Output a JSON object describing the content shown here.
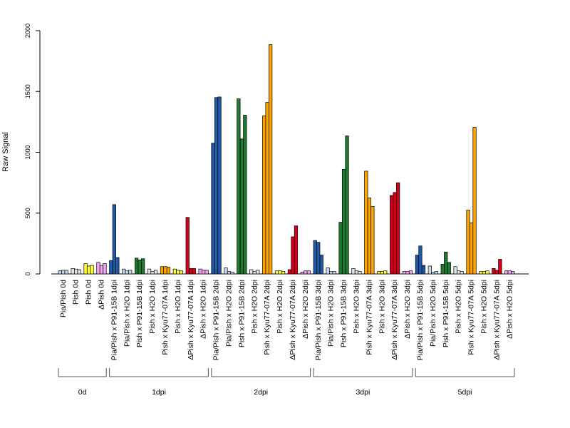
{
  "chart_data": {
    "type": "bar",
    "ylabel": "Raw Signal",
    "ylim": [
      0,
      2000
    ],
    "yticks": [
      0,
      500,
      1000,
      1500,
      2000
    ],
    "grid": false,
    "categories": [
      "Pia/Pish 0d",
      "Pish 0d",
      "Pish 0d",
      "ΔPish 0d",
      "Pia/Pish x P91-15B 1dpi",
      "Pia/Pish x H2O 1dpi",
      "Pish x P91-15B 1dpi",
      "Pish x H2O 1dpi",
      "Pish x Kyu77-07A 1dpi",
      "Pish x H2O 1dpi",
      "ΔPish x Kyu77-07A 1dpi",
      "ΔPish x H2O 1dpi",
      "Pia/Pish x P91-15B 2dpi",
      "Pia/Pish x H2O 2dpi",
      "Pish x P91-15B 2dpi",
      "Pish x H2O 2dpi",
      "Pish x Kyu77-07A 2dpi",
      "Pish x H2O 2dpi",
      "ΔPish x Kyu77-07A 2dpi",
      "ΔPish x H2O 2dpi",
      "Pia/Pish x P91-15B 3dpi",
      "Pia/Pish x H2O 3dpi",
      "Pish x P91-15B 3dpi",
      "Pish x H2O 3dpi",
      "Pish x Kyu77-07A 3dpi",
      "Pish x H2O 3dpi",
      "ΔPish x Kyu77-07A 3dpi",
      "ΔPish x H2O 3dpi",
      "Pia/Pish x P91-15B 5dpi",
      "Pia/Pish x H2O 5dpi",
      "Pish x P91-15B 5dpi",
      "Pish x H2O 5dpi",
      "Pish x Kyu77-07A 5dpi",
      "Pish x H2O 5dpi",
      "ΔPish x Kyu77-07A 5dpi",
      "ΔPish x H2O 5dpi"
    ],
    "colors": [
      "#c6dbef",
      "#e5e5e5",
      "#ffff33",
      "#f4a6f0",
      "#1f5aa6",
      "#c6dbef",
      "#1e7a2e",
      "#e5e5e5",
      "#ffa500",
      "#ffff33",
      "#d7001a",
      "#f4a6f0",
      "#1f5aa6",
      "#c6dbef",
      "#1e7a2e",
      "#e5e5e5",
      "#ffa500",
      "#ffff33",
      "#d7001a",
      "#f4a6f0",
      "#1f5aa6",
      "#c6dbef",
      "#1e7a2e",
      "#e5e5e5",
      "#ffa500",
      "#ffff33",
      "#d7001a",
      "#f4a6f0",
      "#1f5aa6",
      "#c6dbef",
      "#1e7a2e",
      "#e5e5e5",
      "#ffa500",
      "#ffff33",
      "#d7001a",
      "#f4a6f0"
    ],
    "replicate_values": [
      [
        25,
        30,
        30
      ],
      [
        45,
        40,
        35
      ],
      [
        85,
        65,
        70
      ],
      [
        95,
        70,
        85
      ],
      [
        110,
        570,
        135
      ],
      [
        40,
        25,
        30
      ],
      [
        130,
        115,
        125
      ],
      [
        40,
        20,
        30
      ],
      [
        60,
        60,
        55
      ],
      [
        40,
        30,
        25
      ],
      [
        465,
        45,
        45
      ],
      [
        40,
        30,
        30
      ],
      [
        1075,
        1450,
        1455
      ],
      [
        50,
        20,
        15
      ],
      [
        1440,
        1110,
        1305
      ],
      [
        35,
        20,
        30
      ],
      [
        1300,
        1410,
        1885
      ],
      [
        25,
        25,
        20
      ],
      [
        35,
        305,
        395
      ],
      [
        15,
        25,
        25
      ],
      [
        275,
        260,
        155
      ],
      [
        50,
        20,
        20
      ],
      [
        425,
        860,
        1135
      ],
      [
        45,
        25,
        20
      ],
      [
        845,
        625,
        555
      ],
      [
        20,
        20,
        25
      ],
      [
        645,
        670,
        750
      ],
      [
        20,
        20,
        25
      ],
      [
        155,
        230,
        70
      ],
      [
        65,
        15,
        20
      ],
      [
        80,
        180,
        95
      ],
      [
        60,
        25,
        20
      ],
      [
        525,
        420,
        1205
      ],
      [
        20,
        20,
        25
      ],
      [
        45,
        30,
        120
      ],
      [
        25,
        25,
        20
      ]
    ],
    "groups": [
      {
        "label": "0d",
        "start": 0,
        "end": 3
      },
      {
        "label": "1dpi",
        "start": 4,
        "end": 11
      },
      {
        "label": "2dpi",
        "start": 12,
        "end": 19
      },
      {
        "label": "3dpi",
        "start": 20,
        "end": 27
      },
      {
        "label": "5dpi",
        "start": 28,
        "end": 35
      }
    ]
  }
}
